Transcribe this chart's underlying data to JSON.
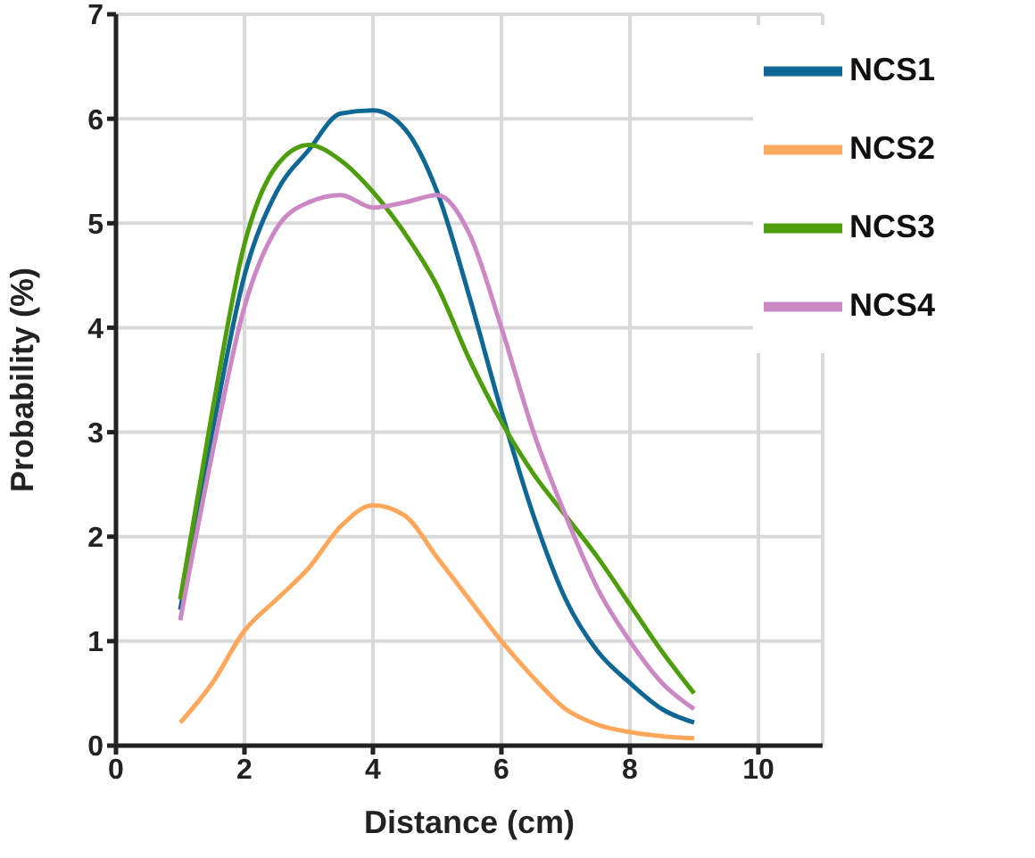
{
  "chart_data": {
    "type": "line",
    "xlabel": "Distance (cm)",
    "ylabel": "Probability (%)",
    "x": [
      1,
      1.5,
      2,
      2.5,
      3,
      3.5,
      4,
      4.5,
      5,
      5.5,
      6,
      6.5,
      7,
      7.5,
      8,
      8.5,
      9
    ],
    "series": [
      {
        "name": "NCS1",
        "color": "#0e6794",
        "values": [
          1.3,
          3.0,
          4.5,
          5.3,
          5.7,
          6.05,
          6.08,
          5.9,
          5.3,
          4.3,
          3.2,
          2.2,
          1.4,
          0.9,
          0.6,
          0.35,
          0.22
        ]
      },
      {
        "name": "NCS2",
        "color": "#ffa85c",
        "values": [
          0.22,
          0.6,
          1.1,
          1.4,
          1.7,
          2.1,
          2.3,
          2.2,
          1.8,
          1.4,
          1.0,
          0.65,
          0.35,
          0.2,
          0.13,
          0.09,
          0.07
        ]
      },
      {
        "name": "NCS3",
        "color": "#4d9e0a",
        "values": [
          1.4,
          3.2,
          4.8,
          5.55,
          5.75,
          5.6,
          5.3,
          4.9,
          4.4,
          3.7,
          3.1,
          2.6,
          2.2,
          1.8,
          1.35,
          0.9,
          0.5
        ]
      },
      {
        "name": "NCS4",
        "color": "#cc88c4",
        "values": [
          1.2,
          2.8,
          4.2,
          4.95,
          5.2,
          5.27,
          5.15,
          5.2,
          5.27,
          4.9,
          4.0,
          3.0,
          2.2,
          1.5,
          1.0,
          0.6,
          0.35
        ]
      }
    ],
    "xlim": [
      0,
      11
    ],
    "xticks": [
      0,
      2,
      4,
      6,
      8,
      10
    ],
    "ylim": [
      0,
      7
    ],
    "yticks": [
      0,
      1,
      2,
      3,
      4,
      5,
      6,
      7
    ],
    "grid": true,
    "legend": "top right",
    "marker": "none",
    "line_style": "solid"
  }
}
